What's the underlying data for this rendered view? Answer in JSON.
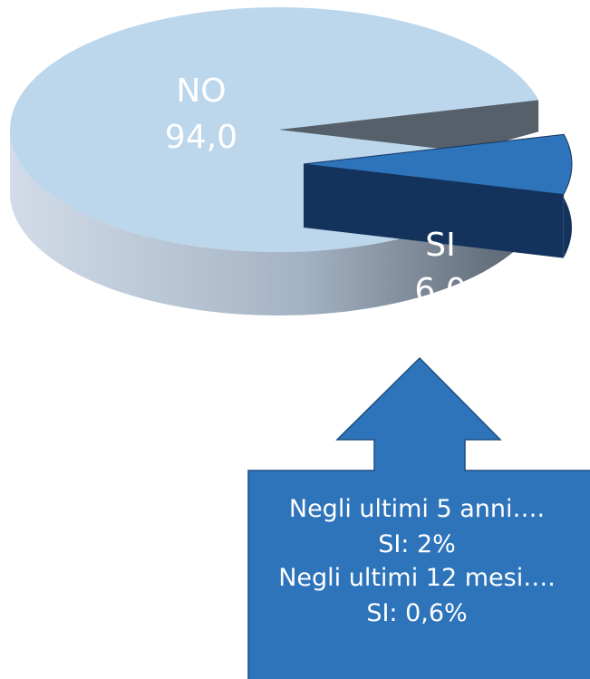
{
  "chart_data": {
    "type": "pie",
    "style": "3d-exploded",
    "slices": [
      {
        "label": "NO",
        "value": 94.0,
        "value_label": "94,0",
        "color": "#BCD6EC",
        "side_color": "#8FA6BD"
      },
      {
        "label": "SI",
        "value": 6.0,
        "value_label": "6,0",
        "color": "#2E74BA",
        "side_color": "#14335C"
      }
    ],
    "legend": "none"
  },
  "callout": {
    "color": "#2E74BA",
    "border_color": "#1E4E80",
    "lines": [
      "Negli ultimi 5 anni….",
      "SI:  2%",
      "Negli ultimi 12 mesi….",
      "SI: 0,6%"
    ]
  }
}
